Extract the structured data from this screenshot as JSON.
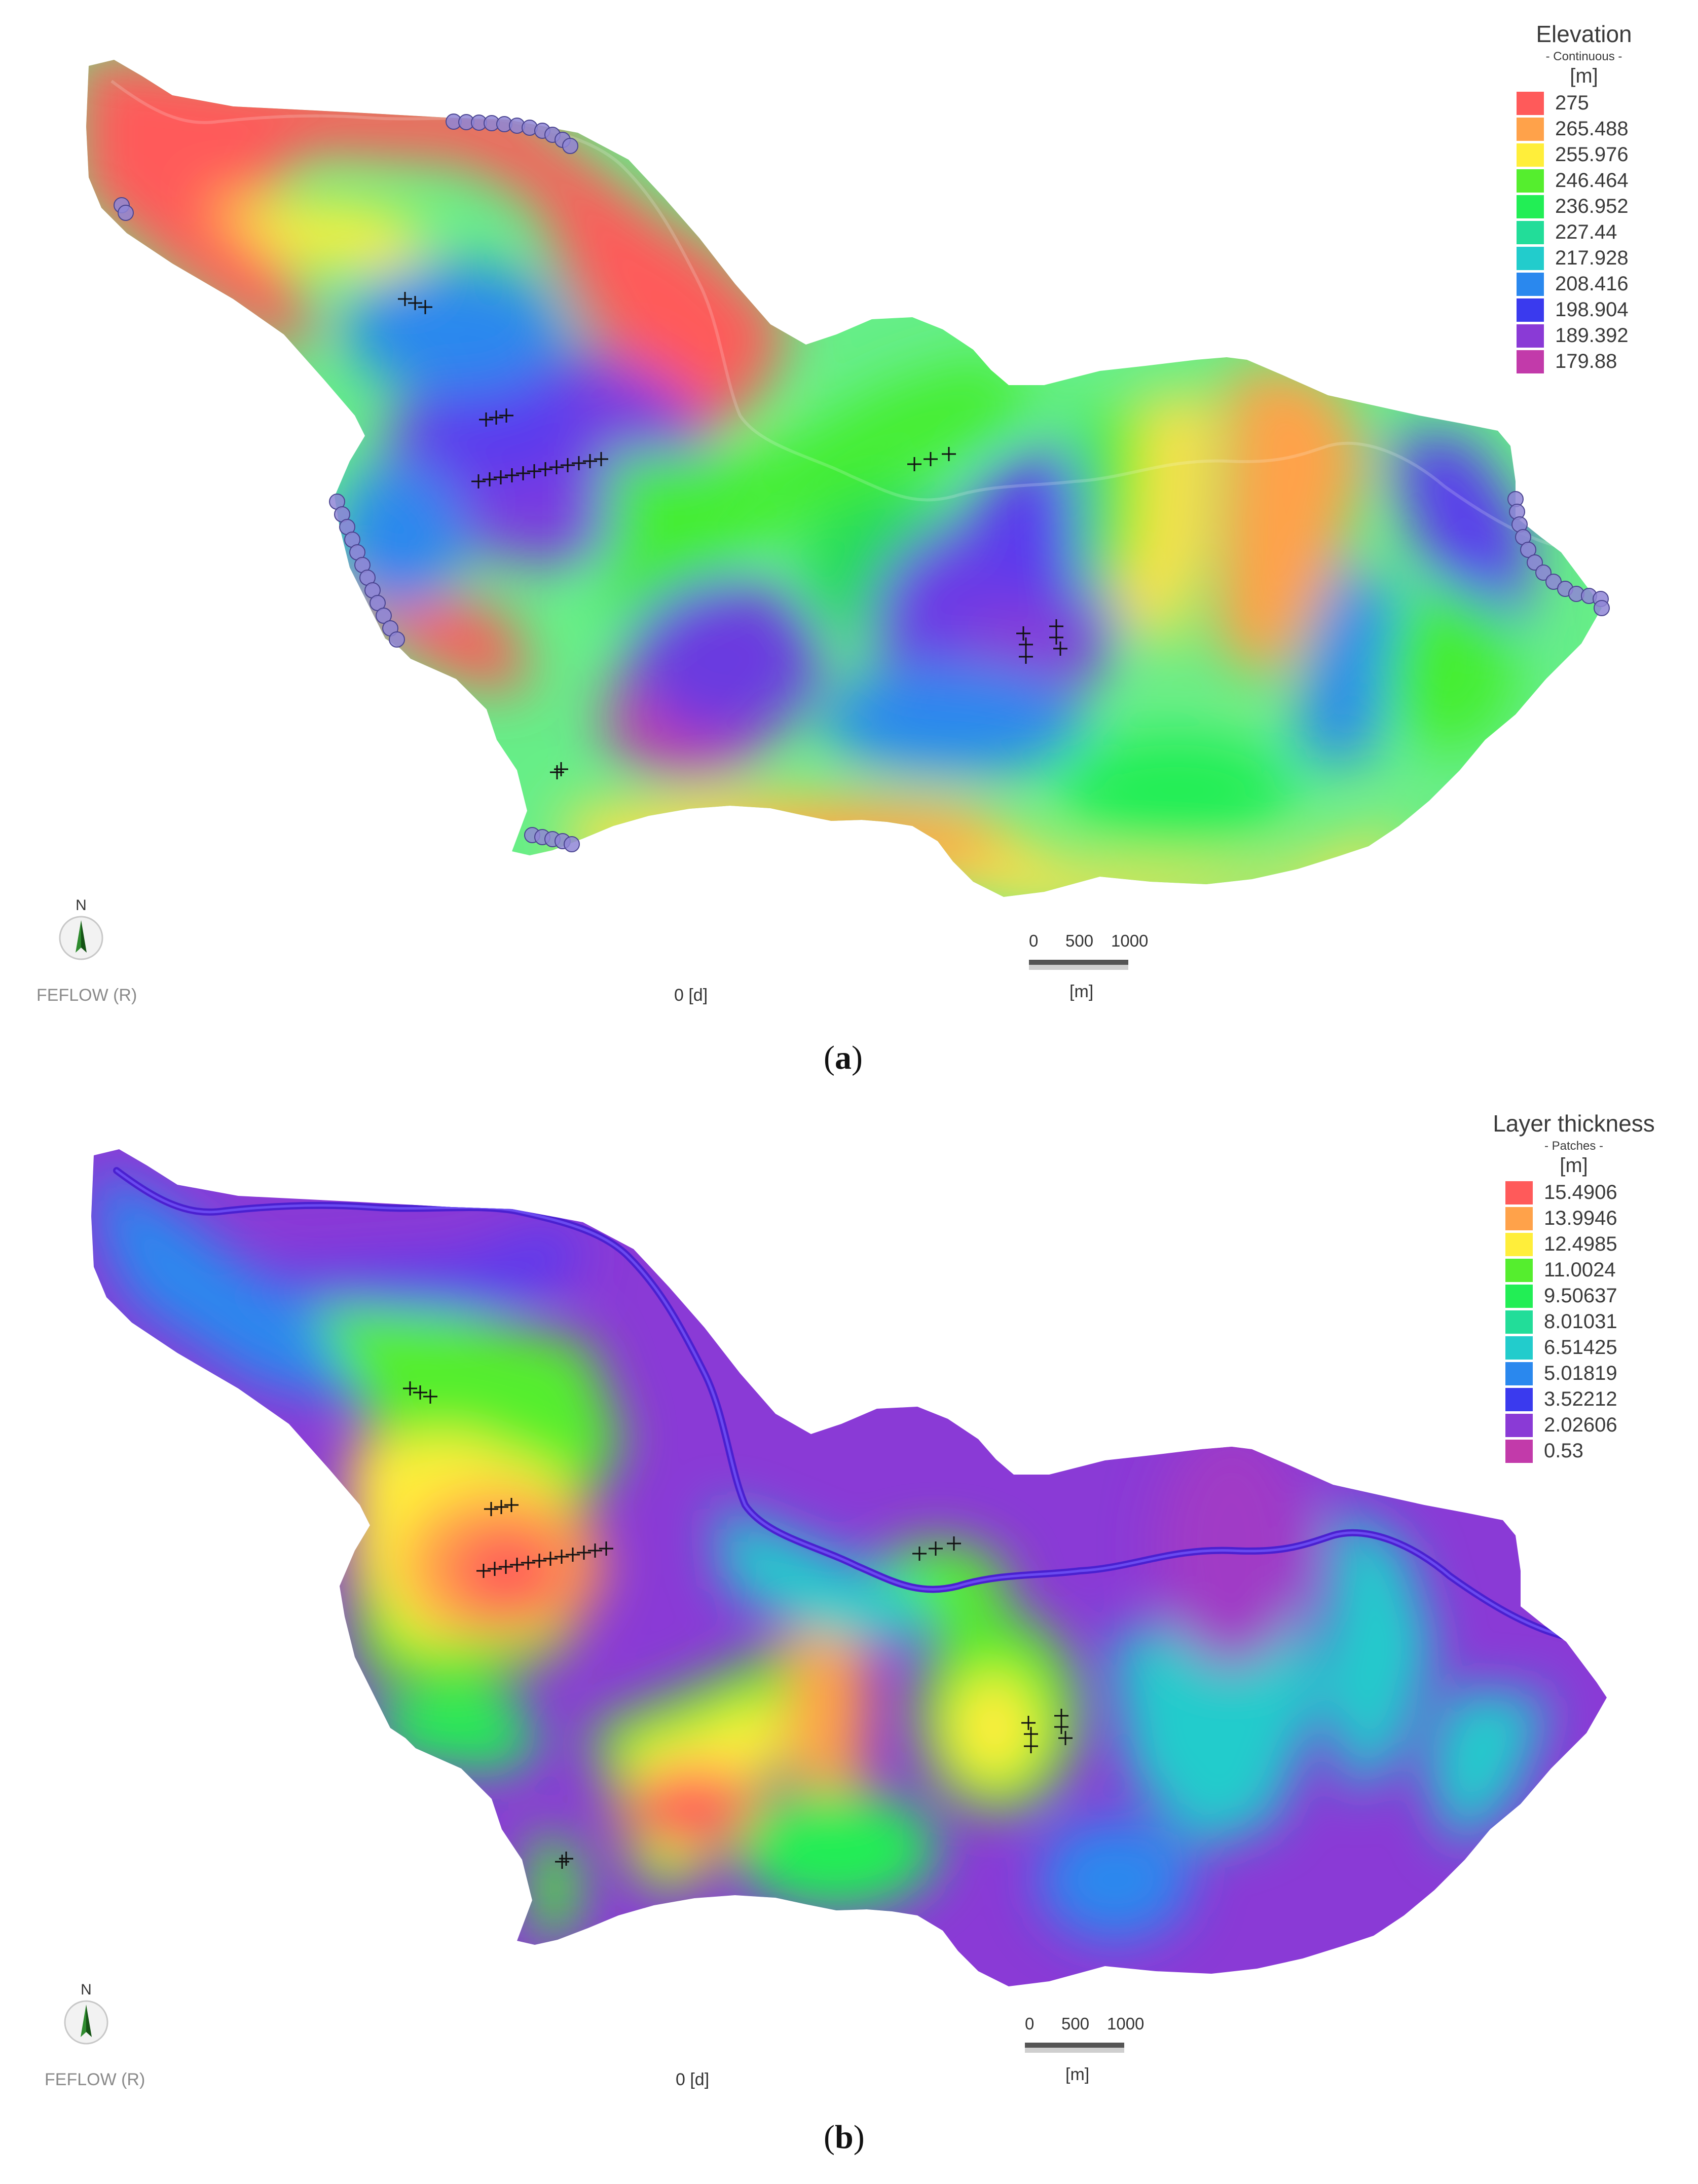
{
  "panels": [
    {
      "id": "a",
      "legend": {
        "title": "Elevation",
        "subtitle": "- Continuous -",
        "unit": "[m]",
        "entries": [
          {
            "label": "275",
            "color": "#ff5a5a"
          },
          {
            "label": "265.488",
            "color": "#ffa24a"
          },
          {
            "label": "255.976",
            "color": "#ffee3a"
          },
          {
            "label": "246.464",
            "color": "#55ee2e"
          },
          {
            "label": "236.952",
            "color": "#22ee55"
          },
          {
            "label": "227.44",
            "color": "#22dd99"
          },
          {
            "label": "217.928",
            "color": "#22cccc"
          },
          {
            "label": "208.416",
            "color": "#2a88ee"
          },
          {
            "label": "198.904",
            "color": "#3a3aee"
          },
          {
            "label": "189.392",
            "color": "#8a3ad6"
          },
          {
            "label": "179.88",
            "color": "#c23aaa"
          }
        ]
      },
      "north_label": "N",
      "app_label": "FEFLOW (R)",
      "time_label": "0 [d]",
      "scale": {
        "ticks": [
          "0",
          "500",
          "1000"
        ],
        "unit": "[m]"
      },
      "caption": {
        "open": "(",
        "letter": "a",
        "close": ")"
      }
    },
    {
      "id": "b",
      "legend": {
        "title": "Layer thickness",
        "subtitle": "- Patches -",
        "unit": "[m]",
        "entries": [
          {
            "label": "15.4906",
            "color": "#ff5a5a"
          },
          {
            "label": "13.9946",
            "color": "#ffa24a"
          },
          {
            "label": "12.4985",
            "color": "#ffee3a"
          },
          {
            "label": "11.0024",
            "color": "#55ee2e"
          },
          {
            "label": "9.50637",
            "color": "#22ee55"
          },
          {
            "label": "8.01031",
            "color": "#22dd99"
          },
          {
            "label": "6.51425",
            "color": "#22cccc"
          },
          {
            "label": "5.01819",
            "color": "#2a88ee"
          },
          {
            "label": "3.52212",
            "color": "#3a3aee"
          },
          {
            "label": "2.02606",
            "color": "#8a3ad6"
          },
          {
            "label": "0.53",
            "color": "#c23aaa"
          }
        ]
      },
      "north_label": "N",
      "app_label": "FEFLOW (R)",
      "time_label": "0 [d]",
      "scale": {
        "ticks": [
          "0",
          "500",
          "1000"
        ],
        "unit": "[m]"
      },
      "caption": {
        "open": "(",
        "letter": "b",
        "close": ")"
      }
    }
  ]
}
